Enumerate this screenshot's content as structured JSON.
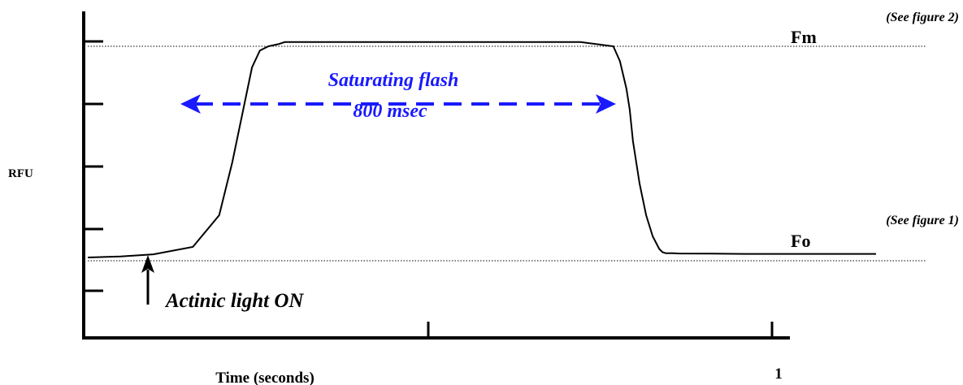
{
  "chart_data": {
    "type": "line",
    "title": "",
    "xlabel": "Time (seconds)",
    "ylabel": "RFU",
    "x_tick_labels": [
      "",
      "",
      "1"
    ],
    "ref_lines": [
      {
        "label": "Fm",
        "note": "(See figure 2)"
      },
      {
        "label": "Fo",
        "note": "(See figure 1)"
      }
    ],
    "annotations": {
      "flash_line1": "Saturating flash",
      "flash_line2": "800 msec",
      "actinic": "Actinic light ON"
    },
    "series": [
      {
        "x": [
          0,
          0.05,
          0.1,
          0.16,
          0.2,
          0.22,
          0.24,
          0.25,
          0.262,
          0.275,
          0.29,
          0.3,
          0.31,
          0.5,
          0.75,
          0.8,
          0.81,
          0.82,
          0.825,
          0.83,
          0.84,
          0.85,
          0.86,
          0.87,
          0.875,
          0.88,
          0.89,
          0.9,
          0.95,
          1.0,
          1.2
        ],
        "y": [
          0.0,
          0.005,
          0.015,
          0.05,
          0.2,
          0.45,
          0.75,
          0.9,
          0.98,
          1.0,
          1.01,
          1.02,
          1.02,
          1.02,
          1.02,
          1.0,
          0.93,
          0.8,
          0.7,
          0.55,
          0.35,
          0.2,
          0.1,
          0.04,
          0.025,
          0.02,
          0.02,
          0.019,
          0.018,
          0.017,
          0.017
        ]
      }
    ],
    "ylim": [
      -0.32,
      1.32
    ],
    "xlim": [
      0,
      1.2
    ],
    "colors": {
      "curve": "#000000",
      "flash": "#1a1aff"
    },
    "grid": false
  }
}
